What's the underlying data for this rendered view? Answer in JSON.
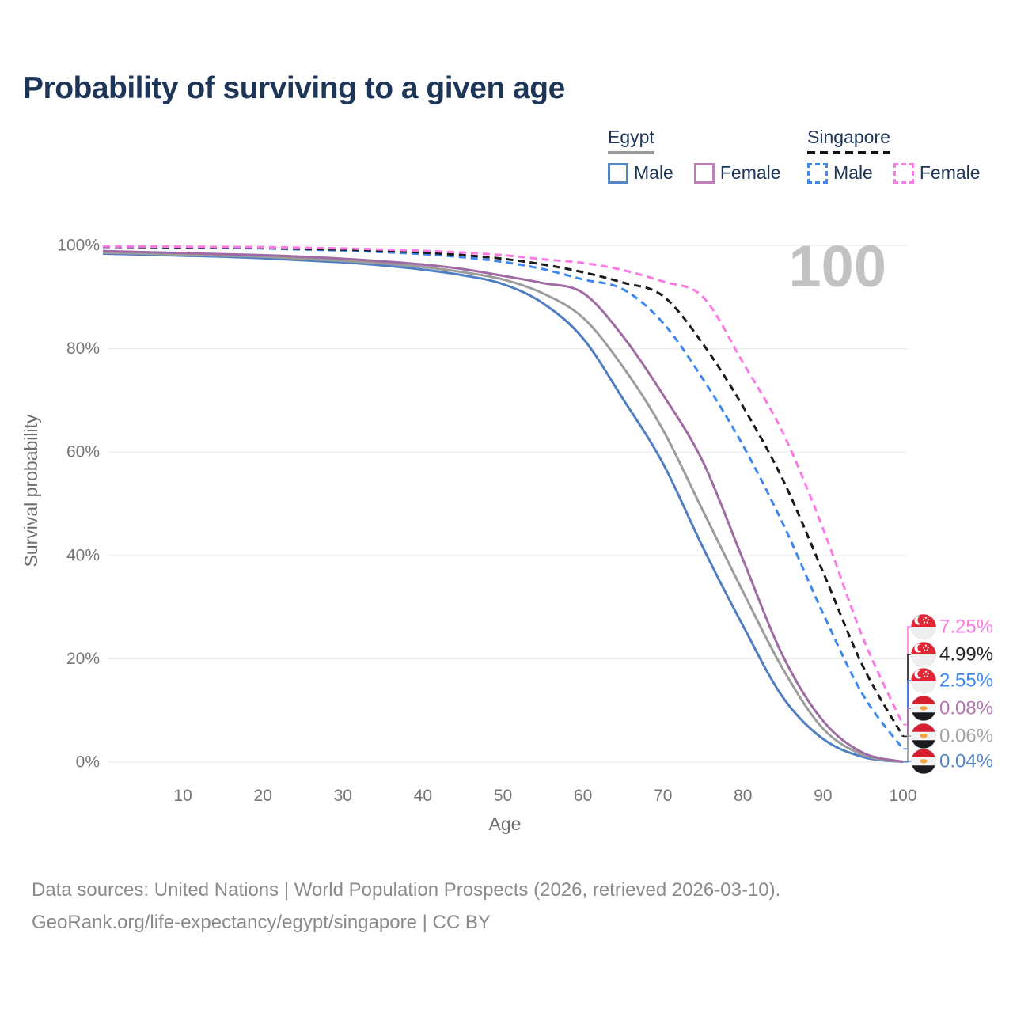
{
  "title": "Probability of surviving to a given age",
  "watermark": "100",
  "legend": {
    "groups": [
      {
        "label": "Egypt",
        "dashed": false,
        "underline_color": "#9a9a9a",
        "items": [
          {
            "label": "Male",
            "color": "#5585c6",
            "dashed": false
          },
          {
            "label": "Female",
            "color": "#bd7fb5",
            "dashed": false
          }
        ]
      },
      {
        "label": "Singapore",
        "dashed": true,
        "underline_color": "#141414",
        "items": [
          {
            "label": "Male",
            "color": "#3e87ef",
            "dashed": true
          },
          {
            "label": "Female",
            "color": "#fb7ae6",
            "dashed": true
          }
        ]
      }
    ]
  },
  "footer": {
    "line1": "Data sources: United Nations | World Population Prospects (2026, retrieved 2026-03-10).",
    "line2": "GeoRank.org/life-expectancy/egypt/singapore | CC BY"
  },
  "chart_data": {
    "type": "line",
    "title": "Probability of surviving to a given age",
    "xlabel": "Age",
    "ylabel": "Survival probability",
    "xlim": [
      0,
      100
    ],
    "ylim": [
      0,
      100
    ],
    "grid": "horizontal",
    "x_ticks": [
      10,
      20,
      30,
      40,
      50,
      60,
      70,
      80,
      90,
      100
    ],
    "y_ticks": [
      {
        "label": "0%",
        "value": 0
      },
      {
        "label": "20%",
        "value": 20
      },
      {
        "label": "40%",
        "value": 40
      },
      {
        "label": "60%",
        "value": 60
      },
      {
        "label": "80%",
        "value": 80
      },
      {
        "label": "100%",
        "value": 100
      }
    ],
    "ages": [
      0,
      5,
      10,
      15,
      20,
      25,
      30,
      35,
      40,
      45,
      50,
      55,
      60,
      65,
      70,
      75,
      80,
      85,
      90,
      95,
      100
    ],
    "series": [
      {
        "id": "egypt-male",
        "name": "Egypt Male",
        "country": "Egypt",
        "sex": "Male",
        "line": "solid",
        "color": "#4f7fc2",
        "label_color": "#5585c6",
        "flag": "egypt",
        "end_label": "0.04%",
        "end_value": 0.04,
        "values": [
          98.4,
          98.2,
          98.0,
          97.8,
          97.5,
          97.1,
          96.7,
          96.1,
          95.3,
          94.2,
          92.5,
          88.8,
          82.0,
          70.3,
          57.8,
          41.5,
          26.4,
          12.5,
          4.5,
          1.0,
          0.04
        ]
      },
      {
        "id": "egypt-all",
        "name": "Egypt",
        "country": "Egypt",
        "sex": "All",
        "line": "solid",
        "color": "#9c9c9c",
        "label_color": "#a3a3a3",
        "flag": "egypt",
        "end_label": "0.06%",
        "end_value": 0.06,
        "values": [
          98.6,
          98.4,
          98.2,
          98.0,
          97.8,
          97.4,
          97.0,
          96.5,
          95.8,
          94.8,
          93.4,
          90.7,
          86.0,
          76.5,
          64.3,
          48.6,
          33.0,
          18.0,
          6.5,
          1.4,
          0.06
        ]
      },
      {
        "id": "egypt-female",
        "name": "Egypt Female",
        "country": "Egypt",
        "sex": "Female",
        "line": "solid",
        "color": "#a06ba5",
        "label_color": "#b273ae",
        "flag": "egypt",
        "end_label": "0.08%",
        "end_value": 0.08,
        "values": [
          98.9,
          98.7,
          98.5,
          98.3,
          98.1,
          97.8,
          97.4,
          96.9,
          96.3,
          95.4,
          94.1,
          92.7,
          90.8,
          82.4,
          71.1,
          58.1,
          39.2,
          20.5,
          8.0,
          1.8,
          0.08
        ]
      },
      {
        "id": "singapore-male",
        "name": "Singapore Male",
        "country": "Singapore",
        "sex": "Male",
        "line": "dashed",
        "color": "#3e87ef",
        "label_color": "#3e87ef",
        "flag": "singapore",
        "end_label": "2.55%",
        "end_value": 2.55,
        "values": [
          99.7,
          99.65,
          99.6,
          99.5,
          99.4,
          99.2,
          99.0,
          98.7,
          98.3,
          97.7,
          96.8,
          95.4,
          93.4,
          91.5,
          85.0,
          74.1,
          61.3,
          46.1,
          28.8,
          13.0,
          2.55
        ]
      },
      {
        "id": "singapore-all",
        "name": "Singapore",
        "country": "Singapore",
        "sex": "All",
        "line": "dashed",
        "color": "#1a1a1a",
        "label_color": "#222222",
        "flag": "singapore",
        "end_label": "4.99%",
        "end_value": 4.99,
        "values": [
          99.75,
          99.7,
          99.65,
          99.6,
          99.5,
          99.35,
          99.2,
          98.95,
          98.6,
          98.1,
          97.4,
          96.3,
          94.8,
          92.8,
          90.2,
          80.9,
          68.8,
          54.6,
          36.8,
          18.5,
          4.99
        ]
      },
      {
        "id": "singapore-female",
        "name": "Singapore Female",
        "country": "Singapore",
        "sex": "Female",
        "line": "dashed",
        "color": "#fb7ae6",
        "label_color": "#fb7ae6",
        "flag": "singapore",
        "end_label": "7.25%",
        "end_value": 7.25,
        "values": [
          99.8,
          99.78,
          99.75,
          99.7,
          99.65,
          99.55,
          99.4,
          99.2,
          98.95,
          98.6,
          98.1,
          97.3,
          96.6,
          95.2,
          93.0,
          90.0,
          77.3,
          63.7,
          45.2,
          24.0,
          7.25
        ]
      }
    ]
  }
}
